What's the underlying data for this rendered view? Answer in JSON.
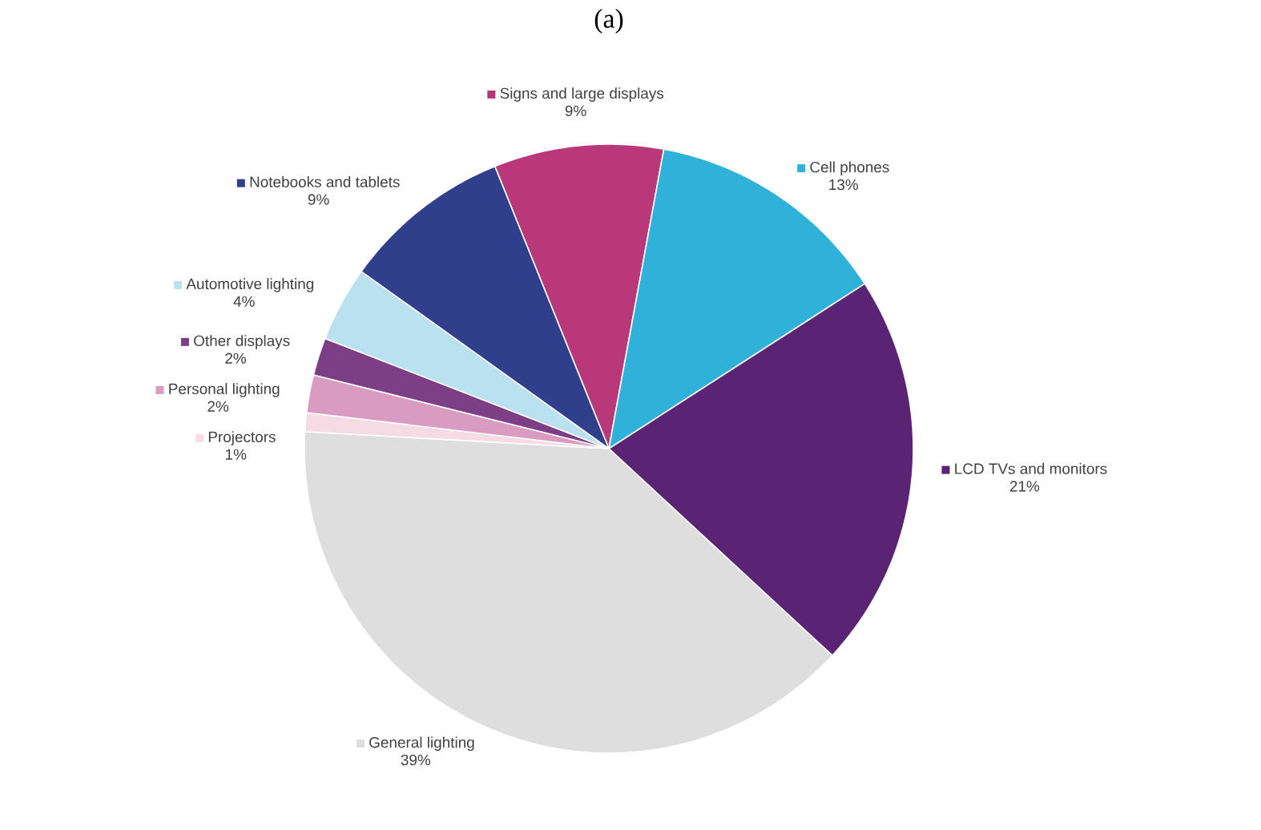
{
  "chart_data": {
    "type": "pie",
    "title": "(a)",
    "legend": "left",
    "categories": [
      "Signs and large displays",
      "Cell phones",
      "LCD TVs and monitors",
      "General lighting",
      "Projectors",
      "Personal lighting",
      "Other displays",
      "Automotive lighting",
      "Notebooks and tablets"
    ],
    "values": [
      9,
      13,
      21,
      39,
      1,
      2,
      2,
      4,
      9
    ],
    "value_labels": [
      "9%",
      "13%",
      "21%",
      "39%",
      "1%",
      "2%",
      "2%",
      "4%",
      "9%"
    ],
    "colors": [
      "#b8387a",
      "#2fb1d9",
      "#5b2373",
      "#dedede",
      "#f6dbe5",
      "#d99bc0",
      "#7c3f85",
      "#b9e1ef",
      "#303f8b"
    ]
  }
}
